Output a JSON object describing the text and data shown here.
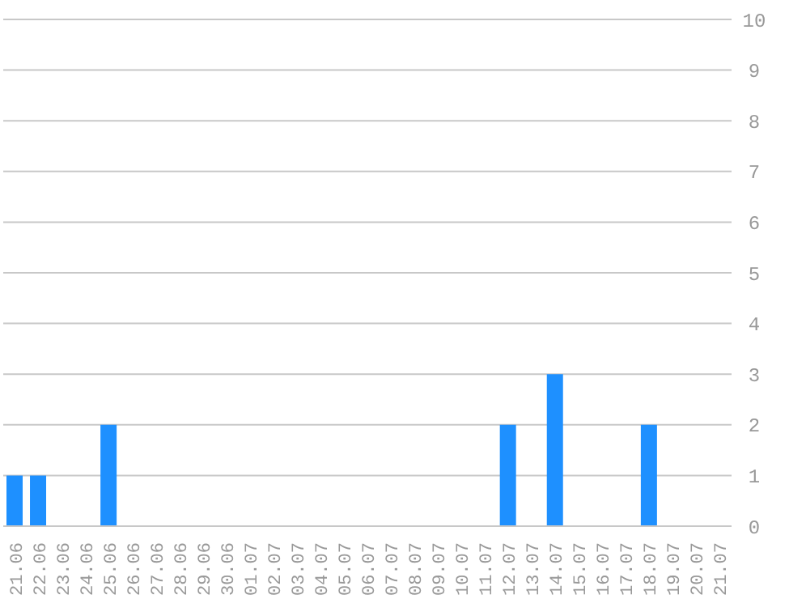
{
  "chart_data": {
    "type": "bar",
    "categories": [
      "21.06",
      "22.06",
      "23.06",
      "24.06",
      "25.06",
      "26.06",
      "27.06",
      "28.06",
      "29.06",
      "30.06",
      "01.07",
      "02.07",
      "03.07",
      "04.07",
      "05.07",
      "06.07",
      "07.07",
      "08.07",
      "09.07",
      "10.07",
      "11.07",
      "12.07",
      "13.07",
      "14.07",
      "15.07",
      "16.07",
      "17.07",
      "18.07",
      "19.07",
      "20.07",
      "21.07"
    ],
    "values": [
      1,
      1,
      0,
      0,
      2,
      0,
      0,
      0,
      0,
      0,
      0,
      0,
      0,
      0,
      0,
      0,
      0,
      0,
      0,
      0,
      0,
      2,
      0,
      3,
      0,
      0,
      0,
      2,
      0,
      0,
      0
    ],
    "color": "#1e90ff",
    "ylim": [
      0,
      10
    ],
    "yticks": [
      0,
      1,
      2,
      3,
      4,
      5,
      6,
      7,
      8,
      9,
      10
    ],
    "grid": "y"
  }
}
